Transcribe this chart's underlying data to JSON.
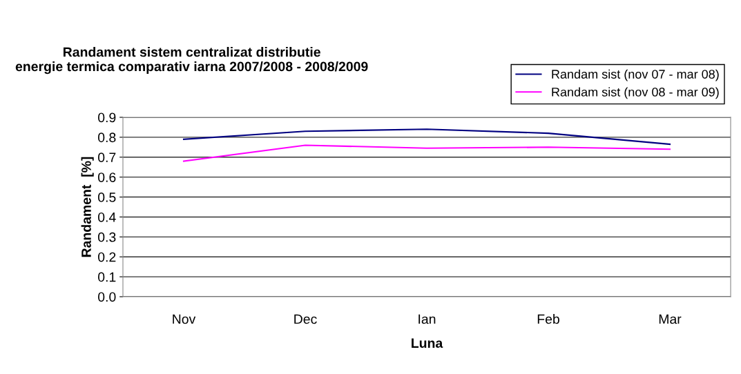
{
  "chart_data": {
    "type": "line",
    "title": "Randament sistem centralizat distributie\nenergie termica comparativ iarna 2007/2008 - 2008/2009",
    "xlabel": "Luna",
    "ylabel": "Randament  [%]",
    "categories": [
      "Nov",
      "Dec",
      "Ian",
      "Feb",
      "Mar"
    ],
    "series": [
      {
        "name": "Randam sist (nov 07 - mar 08)",
        "color": "#000080",
        "values": [
          0.79,
          0.83,
          0.84,
          0.82,
          0.765
        ]
      },
      {
        "name": "Randam sist (nov 08 - mar 09)",
        "color": "#ff00ff",
        "values": [
          0.68,
          0.76,
          0.745,
          0.75,
          0.74
        ]
      }
    ],
    "ylim": [
      0,
      0.9
    ],
    "yticks": [
      {
        "value": 0,
        "label": "0.0"
      },
      0.1,
      0.2,
      0.3,
      0.4,
      0.5,
      0.6,
      0.7,
      0.8,
      0.9
    ],
    "grid": "y",
    "legend": "top right",
    "marker": "none",
    "line_style": "solid"
  }
}
